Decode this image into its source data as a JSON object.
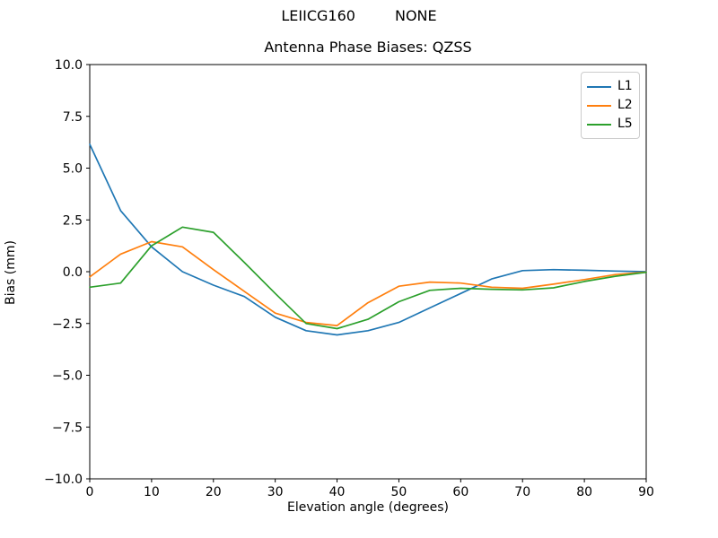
{
  "figure": {
    "suptitle_station": "LEIICG160",
    "suptitle_solution": "NONE",
    "axes_title": "Antenna Phase Biases: QZSS"
  },
  "chart_data": {
    "type": "line",
    "title": "Antenna Phase Biases: QZSS",
    "xlabel": "Elevation angle (degrees)",
    "ylabel": "Bias (mm)",
    "xlim": [
      0,
      90
    ],
    "ylim": [
      -10.0,
      10.0
    ],
    "grid": false,
    "legend_position": "upper right",
    "x_tick_labels": [
      "0",
      "10",
      "20",
      "30",
      "40",
      "50",
      "60",
      "70",
      "80",
      "90"
    ],
    "x_tick_values": [
      0,
      10,
      20,
      30,
      40,
      50,
      60,
      70,
      80,
      90
    ],
    "y_tick_labels": [
      "10.0",
      "7.5",
      "5.0",
      "2.5",
      "0.0",
      "−2.5",
      "−5.0",
      "−7.5",
      "−10.0"
    ],
    "y_tick_values": [
      10.0,
      7.5,
      5.0,
      2.5,
      0.0,
      -2.5,
      -5.0,
      -7.5,
      -10.0
    ],
    "x": [
      0,
      5,
      10,
      15,
      20,
      25,
      30,
      35,
      40,
      45,
      50,
      55,
      60,
      65,
      70,
      75,
      80,
      85,
      90
    ],
    "series": [
      {
        "name": "L1",
        "color": "#1f77b4",
        "values": [
          6.15,
          2.95,
          1.2,
          0.0,
          -0.65,
          -1.2,
          -2.2,
          -2.85,
          -3.05,
          -2.85,
          -2.45,
          -1.75,
          -1.05,
          -0.35,
          0.05,
          0.1,
          0.07,
          0.03,
          0.0
        ]
      },
      {
        "name": "L2",
        "color": "#ff7f0e",
        "values": [
          -0.25,
          0.85,
          1.45,
          1.2,
          0.1,
          -0.95,
          -2.0,
          -2.45,
          -2.6,
          -1.5,
          -0.7,
          -0.5,
          -0.55,
          -0.75,
          -0.8,
          -0.6,
          -0.38,
          -0.14,
          -0.02
        ]
      },
      {
        "name": "L5",
        "color": "#2ca02c",
        "values": [
          -0.75,
          -0.55,
          1.25,
          2.15,
          1.9,
          0.45,
          -1.05,
          -2.5,
          -2.75,
          -2.3,
          -1.45,
          -0.9,
          -0.8,
          -0.85,
          -0.88,
          -0.78,
          -0.47,
          -0.22,
          -0.03
        ]
      }
    ],
    "axis_color": "#000000",
    "text_color": "#000000"
  }
}
